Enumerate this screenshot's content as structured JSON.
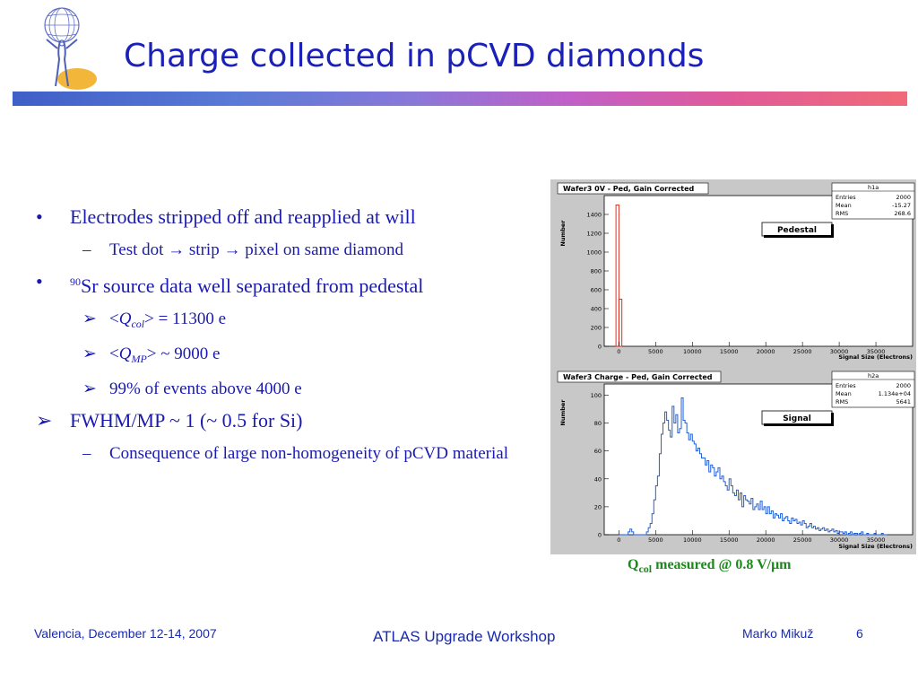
{
  "title": "Charge collected in pCVD diamonds",
  "bullets": [
    {
      "text": "Electrodes stripped off and reapplied at will"
    },
    {
      "text": "Test dot → strip → pixel on same diamond"
    },
    {
      "sup": "90",
      "text": "Sr source data well separated from pedestal"
    },
    {
      "pre": "<",
      "q": "Q",
      "sub": "col",
      "post": "> = 11300 e"
    },
    {
      "pre": "<",
      "q": "Q",
      "sub": "MP",
      "post": "> ~ 9000 e"
    },
    {
      "text": "99% of events above 4000 e"
    },
    {
      "text": "FWHM/MP ~ 1 (~ 0.5 for Si)"
    },
    {
      "text": "Consequence of large non-homogeneity of pCVD material"
    }
  ],
  "caption": {
    "q": "Q",
    "sub": "col",
    "rest": " measured @ 0.8 V/μm"
  },
  "footer": {
    "left": "Valencia, December 12-14, 2007",
    "center": "ATLAS Upgrade Workshop",
    "author": "Marko Mikuž",
    "page": "6"
  },
  "chart_data": [
    {
      "type": "bar",
      "title": "Wafer3 0V - Ped, Gain Corrected",
      "label": "Pedestal",
      "xlabel": "Signal Size (Electrons)",
      "ylabel": "Number",
      "xlim": [
        -2000,
        40000
      ],
      "ylim": [
        0,
        1600
      ],
      "xticks": [
        0,
        5000,
        10000,
        15000,
        20000,
        25000,
        30000,
        35000
      ],
      "yticks": [
        0,
        200,
        400,
        600,
        800,
        1000,
        1200,
        1400
      ],
      "color": "#e03020",
      "stats": {
        "name": "h1a",
        "Entries": "2000",
        "Mean": "-15.27",
        "RMS": "268.6"
      },
      "bins": [
        {
          "x": -200,
          "y": 1500
        },
        {
          "x": 200,
          "y": 500
        }
      ]
    },
    {
      "type": "bar",
      "title": "Wafer3  Charge - Ped, Gain Corrected",
      "label": "Signal",
      "xlabel": "Signal Size (Electrons)",
      "ylabel": "Number",
      "xlim": [
        -2000,
        40000
      ],
      "ylim": [
        0,
        108
      ],
      "xticks": [
        0,
        5000,
        10000,
        15000,
        20000,
        25000,
        30000,
        35000
      ],
      "yticks": [
        0,
        20,
        40,
        60,
        80,
        100
      ],
      "color": "#2060d8",
      "stats": {
        "name": "h2a",
        "Entries": "2000",
        "Mean": "1.134e+04",
        "RMS": "5641"
      },
      "bin_start": 0,
      "bin_width": 250,
      "values": [
        0,
        0,
        0,
        0,
        0,
        2,
        4,
        2,
        0,
        0,
        0,
        0,
        0,
        0,
        0,
        2,
        5,
        8,
        15,
        25,
        35,
        42,
        58,
        72,
        80,
        88,
        82,
        75,
        70,
        92,
        80,
        86,
        73,
        76,
        98,
        82,
        80,
        73,
        68,
        72,
        67,
        65,
        60,
        62,
        58,
        55,
        55,
        50,
        53,
        45,
        50,
        48,
        42,
        45,
        48,
        40,
        42,
        38,
        35,
        32,
        40,
        35,
        30,
        28,
        32,
        25,
        30,
        20,
        28,
        25,
        24,
        22,
        26,
        18,
        20,
        22,
        18,
        24,
        18,
        20,
        15,
        20,
        15,
        17,
        12,
        15,
        14,
        12,
        15,
        10,
        12,
        13,
        10,
        8,
        12,
        10,
        11,
        8,
        9,
        7,
        10,
        8,
        5,
        6,
        8,
        5,
        6,
        4,
        5,
        3,
        4,
        5,
        3,
        4,
        2,
        3,
        4,
        2,
        3,
        1,
        2,
        2,
        1,
        2,
        0,
        1,
        2,
        0,
        1,
        1,
        0,
        1,
        2,
        0,
        0,
        1,
        0,
        0,
        0,
        1,
        0,
        0,
        0,
        1,
        0,
        0
      ]
    }
  ]
}
